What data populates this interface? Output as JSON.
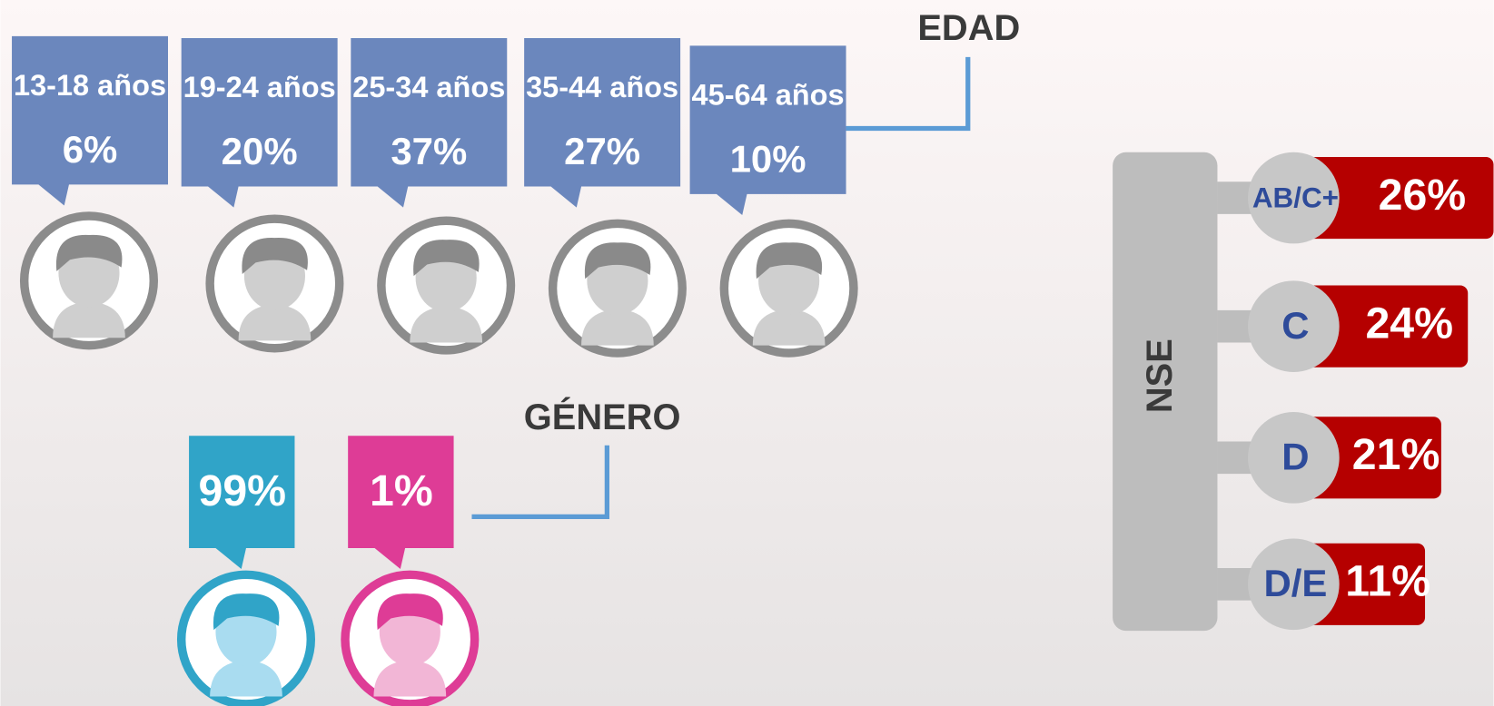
{
  "edad": {
    "title": "EDAD",
    "groups": [
      {
        "label": "13-18 años",
        "value": "6%"
      },
      {
        "label": "19-24 años",
        "value": "20%"
      },
      {
        "label": "25-34 años",
        "value": "37%"
      },
      {
        "label": "35-44 años",
        "value": "27%"
      },
      {
        "label": "45-64 años",
        "value": "10%"
      }
    ]
  },
  "genero": {
    "title": "GÉNERO",
    "items": [
      {
        "value": "99%"
      },
      {
        "value": "1%"
      }
    ]
  },
  "nse": {
    "title": "NSE",
    "levels": [
      {
        "label": "AB/C+",
        "value": "26%"
      },
      {
        "label": "C",
        "value": "24%"
      },
      {
        "label": "D",
        "value": "21%"
      },
      {
        "label": "D/E",
        "value": "11%"
      }
    ]
  }
}
